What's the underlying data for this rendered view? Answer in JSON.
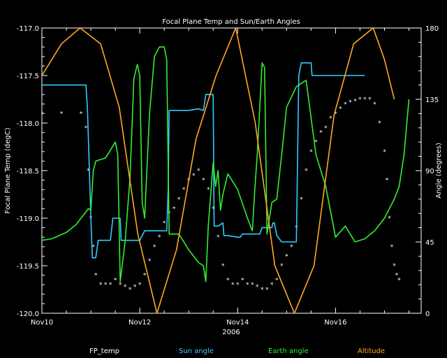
{
  "chart_data": {
    "type": "line",
    "title": "Focal Plane Temp and Sun/Earth Angles",
    "xlabel": "2006",
    "ylabel": "Focal Plane Temp (degC)",
    "y2label": "Angle (degrees)",
    "xlim": [
      10,
      17.75
    ],
    "ylim": [
      -120.0,
      -117.0
    ],
    "y2lim": [
      0,
      180
    ],
    "x_ticks": [
      {
        "value": 10,
        "label": "Nov10"
      },
      {
        "value": 12,
        "label": "Nov12"
      },
      {
        "value": 14,
        "label": "Nov14"
      },
      {
        "value": 16,
        "label": "Nov16"
      }
    ],
    "y_ticks": [
      {
        "value": -117.0,
        "label": "-117.0"
      },
      {
        "value": -117.5,
        "label": "-117.5"
      },
      {
        "value": -118.0,
        "label": "-118.0"
      },
      {
        "value": -118.5,
        "label": "-118.5"
      },
      {
        "value": -119.0,
        "label": "-119.0"
      },
      {
        "value": -119.5,
        "label": "-119.5"
      },
      {
        "value": -120.0,
        "label": "-120.0"
      }
    ],
    "y2_ticks": [
      {
        "value": 0,
        "label": "0"
      },
      {
        "value": 45,
        "label": "45"
      },
      {
        "value": 90,
        "label": "90"
      },
      {
        "value": 135,
        "label": "135"
      },
      {
        "value": 180,
        "label": "180"
      }
    ],
    "series": [
      {
        "name": "FP_temp",
        "axis": "left",
        "style": "markers",
        "color": "#ffffff",
        "x": [
          10.0,
          10.4,
          10.8,
          10.9,
          10.95,
          11.0,
          11.05,
          11.1,
          11.2,
          11.3,
          11.4,
          11.5,
          11.6,
          11.7,
          11.8,
          11.9,
          12.0,
          12.1,
          12.2,
          12.3,
          12.4,
          12.5,
          12.6,
          12.7,
          12.8,
          12.9,
          13.0,
          13.1,
          13.2,
          13.3,
          13.4,
          13.5,
          13.6,
          13.7,
          13.8,
          13.9,
          14.0,
          14.1,
          14.2,
          14.3,
          14.4,
          14.5,
          14.6,
          14.7,
          14.8,
          14.9,
          15.0,
          15.1,
          15.2,
          15.3,
          15.4,
          15.5,
          15.6,
          15.7,
          15.8,
          15.9,
          16.0,
          16.1,
          16.2,
          16.3,
          16.4,
          16.5,
          16.6,
          16.7,
          16.8,
          16.9,
          17.0,
          17.05,
          17.1,
          17.15,
          17.2,
          17.25,
          17.3
        ],
        "y": [
          -117.9,
          -117.9,
          -117.9,
          -118.05,
          -118.5,
          -119.0,
          -119.3,
          -119.6,
          -119.7,
          -119.7,
          -119.7,
          -119.65,
          -119.7,
          -119.72,
          -119.75,
          -119.72,
          -119.7,
          -119.6,
          -119.45,
          -119.3,
          -119.2,
          -119.05,
          -118.95,
          -118.9,
          -118.8,
          -118.7,
          -118.6,
          -118.55,
          -118.5,
          -118.6,
          -118.7,
          -118.9,
          -119.2,
          -119.5,
          -119.65,
          -119.7,
          -119.7,
          -119.65,
          -119.7,
          -119.7,
          -119.72,
          -119.75,
          -119.75,
          -119.7,
          -119.65,
          -119.5,
          -119.4,
          -119.3,
          -119.1,
          -118.8,
          -118.5,
          -118.3,
          -118.2,
          -118.1,
          -118.05,
          -117.95,
          -117.9,
          -117.85,
          -117.8,
          -117.78,
          -117.77,
          -117.75,
          -117.75,
          -117.75,
          -117.8,
          -118.0,
          -118.3,
          -118.6,
          -119.0,
          -119.3,
          -119.5,
          -119.6,
          -119.65
        ]
      },
      {
        "name": "Sun angle",
        "axis": "right",
        "style": "line",
        "color": "#33ccff",
        "x": [
          10.0,
          10.9,
          10.93,
          11.0,
          11.03,
          11.1,
          11.15,
          11.2,
          11.4,
          11.45,
          11.5,
          11.6,
          11.62,
          12.0,
          12.1,
          12.3,
          12.4,
          12.5,
          12.55,
          12.58,
          12.6,
          12.9,
          13.0,
          13.2,
          13.3,
          13.35,
          13.4,
          13.5,
          13.52,
          13.6,
          13.7,
          13.72,
          13.8,
          14.0,
          14.05,
          14.1,
          14.4,
          14.45,
          14.5,
          14.7,
          14.72,
          14.75,
          14.8,
          14.9,
          14.95,
          15.0,
          15.1,
          15.2,
          15.25,
          15.3,
          15.5,
          15.52,
          15.6,
          16.0,
          16.5,
          16.6
        ],
        "y": [
          144,
          144,
          129,
          60,
          35,
          35,
          46,
          46,
          46,
          60,
          60,
          60,
          46,
          46,
          52,
          52,
          52,
          52,
          52,
          78,
          128,
          128,
          128,
          129,
          128,
          138,
          138,
          138,
          55,
          55,
          57,
          49,
          49,
          48,
          48,
          50,
          50,
          50,
          54,
          54,
          57,
          57,
          49,
          45,
          45,
          45,
          45,
          45,
          150,
          158,
          158,
          150,
          150,
          150,
          150,
          150
        ]
      },
      {
        "name": "Earth angle",
        "axis": "right",
        "style": "line",
        "color": "#33ee33",
        "x": [
          10.0,
          10.2,
          10.5,
          10.7,
          10.8,
          10.85,
          10.9,
          10.95,
          11.0,
          11.02,
          11.05,
          11.1,
          11.3,
          11.5,
          11.55,
          11.6,
          11.7,
          11.8,
          11.88,
          11.95,
          12.0,
          12.05,
          12.1,
          12.2,
          12.3,
          12.4,
          12.5,
          12.55,
          12.6,
          12.8,
          13.0,
          13.2,
          13.3,
          13.35,
          13.4,
          13.5,
          13.55,
          13.6,
          13.65,
          13.7,
          13.8,
          14.0,
          14.2,
          14.3,
          14.35,
          14.4,
          14.5,
          14.55,
          14.6,
          14.7,
          14.8,
          14.9,
          15.0,
          15.2,
          15.4,
          15.6,
          15.8,
          16.0,
          16.2,
          16.4,
          16.6,
          16.8,
          17.0,
          17.2,
          17.3,
          17.35,
          17.4,
          17.5
        ],
        "y": [
          46,
          47,
          51,
          56,
          60,
          62,
          64,
          66,
          65,
          75,
          90,
          96,
          98,
          108,
          100,
          20,
          45,
          85,
          148,
          157,
          150,
          70,
          60,
          126,
          162,
          168,
          168,
          160,
          50,
          50,
          40,
          32,
          30,
          20,
          55,
          95,
          80,
          90,
          65,
          75,
          88,
          78,
          60,
          52,
          78,
          100,
          158,
          155,
          50,
          70,
          72,
          100,
          130,
          143,
          147,
          100,
          80,
          48,
          55,
          45,
          47,
          52,
          60,
          72,
          80,
          90,
          100,
          135
        ]
      },
      {
        "name": "Altitude",
        "axis": "right",
        "style": "line",
        "color": "#ffaa22",
        "x": [
          10.0,
          10.4,
          10.78,
          11.2,
          11.58,
          11.96,
          12.35,
          12.75,
          13.15,
          13.56,
          13.96,
          14.36,
          14.76,
          15.16,
          15.56,
          15.97,
          16.37,
          16.77,
          17.0,
          17.2
        ],
        "y": [
          150,
          170,
          180,
          170,
          130,
          50,
          0,
          40,
          110,
          150,
          180,
          120,
          30,
          0,
          30,
          125,
          170,
          180,
          160,
          135
        ]
      }
    ]
  }
}
